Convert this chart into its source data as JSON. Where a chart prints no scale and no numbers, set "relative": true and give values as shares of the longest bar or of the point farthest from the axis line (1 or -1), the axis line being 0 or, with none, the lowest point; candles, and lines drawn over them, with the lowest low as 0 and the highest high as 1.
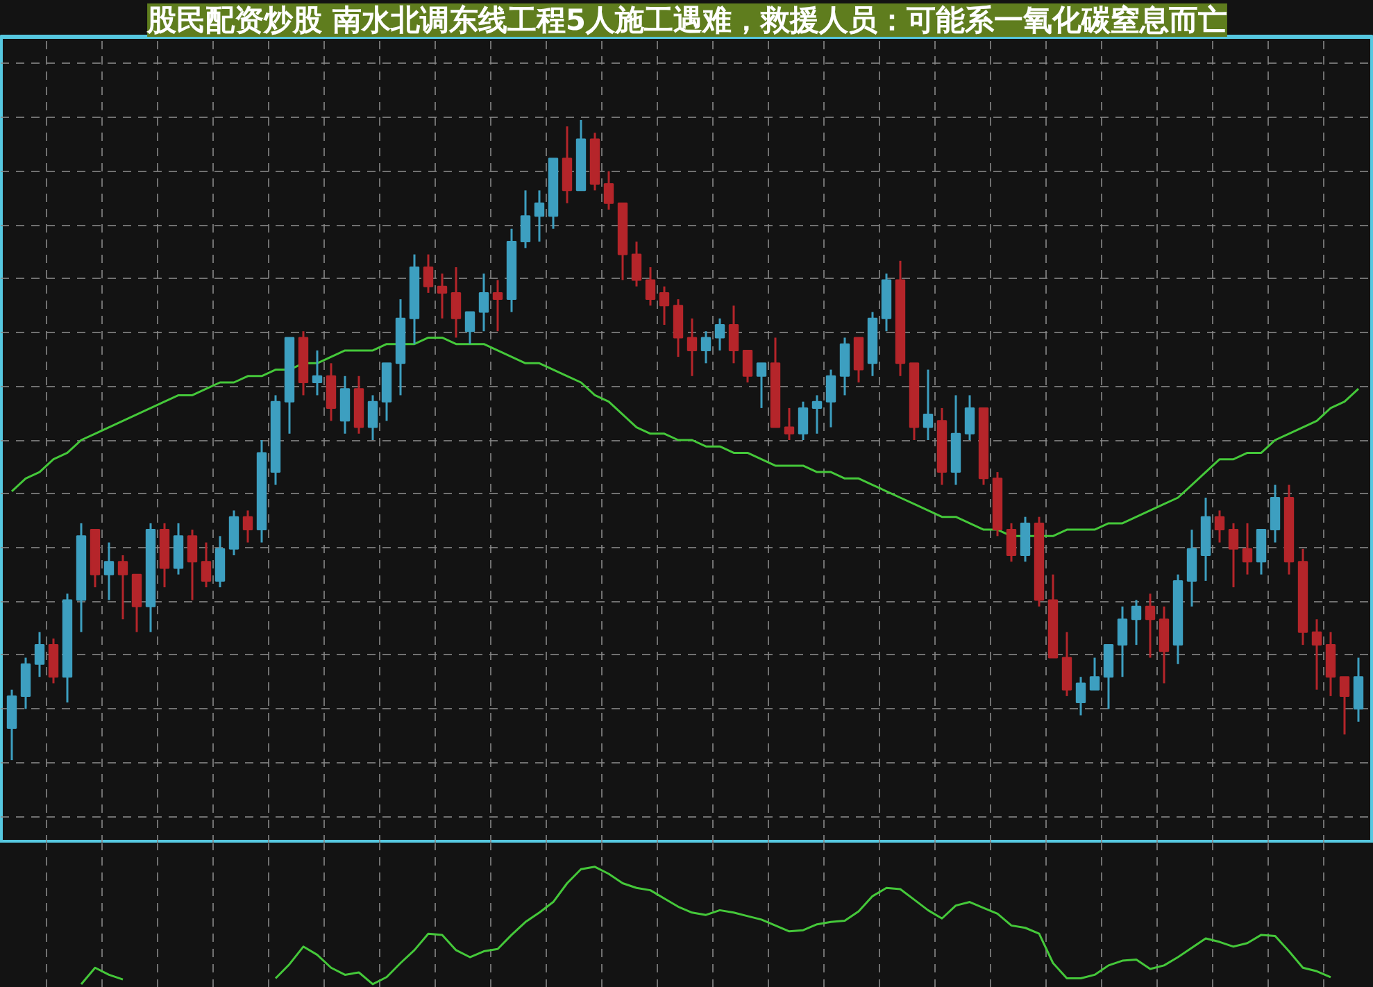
{
  "chart_data": [
    {
      "type": "candlestick",
      "title": "股民配资炒股 南水北调东线工程5人施工遇难，救援人员：可能系一氧化碳窒息而亡",
      "relative": true,
      "grid": true,
      "colors": [
        "#3d9fc0",
        "#3d9fc0",
        "#3d9fc0",
        "#b5252a",
        "#3d9fc0",
        "#3d9fc0",
        "#b5252a",
        "#3d9fc0",
        "#b5252a",
        "#b5252a",
        "#3d9fc0",
        "#b5252a",
        "#3d9fc0",
        "#b5252a",
        "#b5252a",
        "#3d9fc0",
        "#3d9fc0",
        "#b5252a",
        "#3d9fc0",
        "#3d9fc0",
        "#3d9fc0",
        "#b5252a",
        "#3d9fc0",
        "#b5252a",
        "#3d9fc0",
        "#b5252a",
        "#3d9fc0",
        "#3d9fc0",
        "#3d9fc0",
        "#3d9fc0",
        "#b5252a",
        "#b5252a",
        "#b5252a",
        "#3d9fc0",
        "#3d9fc0",
        "#b5252a",
        "#3d9fc0",
        "#3d9fc0",
        "#3d9fc0",
        "#3d9fc0",
        "#b5252a",
        "#3d9fc0",
        "#b5252a",
        "#b5252a",
        "#b5252a",
        "#b5252a",
        "#b5252a",
        "#b5252a",
        "#b5252a",
        "#b5252a",
        "#3d9fc0",
        "#3d9fc0",
        "#b5252a",
        "#b5252a",
        "#3d9fc0",
        "#b5252a",
        "#b5252a",
        "#3d9fc0",
        "#3d9fc0",
        "#3d9fc0",
        "#3d9fc0",
        "#b5252a",
        "#3d9fc0",
        "#3d9fc0",
        "#b5252a",
        "#b5252a",
        "#3d9fc0",
        "#b5252a",
        "#3d9fc0",
        "#3d9fc0",
        "#b5252a",
        "#b5252a",
        "#b5252a",
        "#3d9fc0",
        "#b5252a",
        "#b5252a",
        "#b5252a",
        "#3d9fc0",
        "#3d9fc0",
        "#3d9fc0",
        "#3d9fc0",
        "#3d9fc0",
        "#b5252a",
        "#b5252a",
        "#3d9fc0",
        "#3d9fc0",
        "#3d9fc0",
        "#b5252a",
        "#b5252a",
        "#b5252a",
        "#3d9fc0",
        "#3d9fc0",
        "#b5252a",
        "#b5252a",
        "#b5252a",
        "#b5252a",
        "#b5252a",
        "#3d9fc0"
      ],
      "categories": [
        null,
        null,
        null,
        null,
        null,
        null,
        null,
        null,
        null,
        null,
        null,
        null,
        null,
        null,
        null,
        null,
        null,
        null,
        null,
        null,
        null,
        null,
        null,
        null,
        null,
        null,
        null,
        null,
        null,
        null,
        null,
        null,
        null,
        null,
        null,
        null,
        null,
        null,
        null,
        null,
        null,
        null,
        null,
        null,
        null,
        null,
        null,
        null,
        null,
        null,
        null,
        null,
        null,
        null,
        null,
        null,
        null,
        null,
        null,
        null,
        null,
        null,
        null,
        null,
        null,
        null,
        null,
        null,
        null,
        null,
        null,
        null,
        null,
        null,
        null,
        null,
        null,
        null,
        null,
        null,
        null,
        null,
        null,
        null,
        null,
        null,
        null,
        null,
        null,
        null,
        null,
        null,
        null,
        null,
        null,
        null,
        null,
        null
      ],
      "ohlc": [
        [
          0.05,
          0.11,
          0,
          0.1
        ],
        [
          0.1,
          0.16,
          0.08,
          0.15
        ],
        [
          0.15,
          0.2,
          0.13,
          0.18
        ],
        [
          0.18,
          0.19,
          0.12,
          0.13
        ],
        [
          0.13,
          0.26,
          0.09,
          0.25
        ],
        [
          0.25,
          0.37,
          0.2,
          0.35
        ],
        [
          0.36,
          0.36,
          0.27,
          0.29
        ],
        [
          0.29,
          0.34,
          0.25,
          0.31
        ],
        [
          0.31,
          0.32,
          0.22,
          0.29
        ],
        [
          0.29,
          0.29,
          0.2,
          0.24
        ],
        [
          0.24,
          0.37,
          0.2,
          0.36
        ],
        [
          0.36,
          0.37,
          0.27,
          0.3
        ],
        [
          0.3,
          0.37,
          0.29,
          0.35
        ],
        [
          0.35,
          0.36,
          0.25,
          0.31
        ],
        [
          0.31,
          0.34,
          0.27,
          0.28
        ],
        [
          0.28,
          0.35,
          0.27,
          0.33
        ],
        [
          0.33,
          0.39,
          0.32,
          0.38
        ],
        [
          0.38,
          0.39,
          0.34,
          0.36
        ],
        [
          0.36,
          0.5,
          0.34,
          0.48
        ],
        [
          0.45,
          0.57,
          0.43,
          0.56
        ],
        [
          0.56,
          0.66,
          0.51,
          0.66
        ],
        [
          0.66,
          0.67,
          0.57,
          0.59
        ],
        [
          0.59,
          0.64,
          0.57,
          0.6
        ],
        [
          0.6,
          0.62,
          0.53,
          0.55
        ],
        [
          0.53,
          0.6,
          0.51,
          0.58
        ],
        [
          0.58,
          0.6,
          0.51,
          0.52
        ],
        [
          0.52,
          0.57,
          0.5,
          0.56
        ],
        [
          0.56,
          0.62,
          0.53,
          0.62
        ],
        [
          0.62,
          0.72,
          0.57,
          0.69
        ],
        [
          0.69,
          0.79,
          0.65,
          0.77
        ],
        [
          0.77,
          0.79,
          0.73,
          0.74
        ],
        [
          0.74,
          0.76,
          0.69,
          0.73
        ],
        [
          0.73,
          0.77,
          0.66,
          0.69
        ],
        [
          0.67,
          0.7,
          0.65,
          0.7
        ],
        [
          0.7,
          0.76,
          0.67,
          0.73
        ],
        [
          0.73,
          0.75,
          0.67,
          0.72
        ],
        [
          0.72,
          0.83,
          0.7,
          0.81
        ],
        [
          0.81,
          0.89,
          0.8,
          0.85
        ],
        [
          0.85,
          0.89,
          0.81,
          0.87
        ],
        [
          0.85,
          0.94,
          0.83,
          0.94
        ],
        [
          0.94,
          0.99,
          0.87,
          0.89
        ],
        [
          0.89,
          1,
          0.89,
          0.97
        ],
        [
          0.97,
          0.98,
          0.89,
          0.9
        ],
        [
          0.9,
          0.92,
          0.86,
          0.87
        ],
        [
          0.87,
          0.87,
          0.75,
          0.79
        ],
        [
          0.79,
          0.81,
          0.74,
          0.75
        ],
        [
          0.75,
          0.77,
          0.71,
          0.72
        ],
        [
          0.73,
          0.74,
          0.68,
          0.71
        ],
        [
          0.71,
          0.72,
          0.63,
          0.66
        ],
        [
          0.66,
          0.69,
          0.6,
          0.64
        ],
        [
          0.64,
          0.67,
          0.62,
          0.66
        ],
        [
          0.66,
          0.69,
          0.64,
          0.68
        ],
        [
          0.68,
          0.71,
          0.62,
          0.64
        ],
        [
          0.64,
          0.64,
          0.59,
          0.6
        ],
        [
          0.6,
          0.62,
          0.55,
          0.62
        ],
        [
          0.62,
          0.66,
          0.52,
          0.52
        ],
        [
          0.52,
          0.55,
          0.5,
          0.51
        ],
        [
          0.51,
          0.56,
          0.5,
          0.55
        ],
        [
          0.55,
          0.57,
          0.51,
          0.56
        ],
        [
          0.56,
          0.61,
          0.52,
          0.6
        ],
        [
          0.6,
          0.66,
          0.57,
          0.65
        ],
        [
          0.66,
          0.66,
          0.59,
          0.61
        ],
        [
          0.62,
          0.7,
          0.6,
          0.69
        ],
        [
          0.69,
          0.76,
          0.67,
          0.75
        ],
        [
          0.75,
          0.78,
          0.6,
          0.62
        ],
        [
          0.62,
          0.62,
          0.5,
          0.52
        ],
        [
          0.52,
          0.61,
          0.5,
          0.54
        ],
        [
          0.53,
          0.55,
          0.43,
          0.45
        ],
        [
          0.45,
          0.57,
          0.43,
          0.51
        ],
        [
          0.51,
          0.57,
          0.5,
          0.55
        ],
        [
          0.55,
          0.55,
          0.43,
          0.44
        ],
        [
          0.44,
          0.45,
          0.35,
          0.36
        ],
        [
          0.36,
          0.37,
          0.31,
          0.32
        ],
        [
          0.32,
          0.38,
          0.31,
          0.37
        ],
        [
          0.37,
          0.38,
          0.24,
          0.25
        ],
        [
          0.25,
          0.29,
          0.16,
          0.16
        ],
        [
          0.16,
          0.2,
          0.1,
          0.11
        ],
        [
          0.09,
          0.13,
          0.07,
          0.12
        ],
        [
          0.11,
          0.16,
          0.11,
          0.13
        ],
        [
          0.13,
          0.18,
          0.08,
          0.18
        ],
        [
          0.18,
          0.24,
          0.13,
          0.22
        ],
        [
          0.22,
          0.25,
          0.18,
          0.24
        ],
        [
          0.24,
          0.26,
          0.16,
          0.22
        ],
        [
          0.22,
          0.24,
          0.12,
          0.17
        ],
        [
          0.18,
          0.29,
          0.15,
          0.28
        ],
        [
          0.28,
          0.36,
          0.24,
          0.33
        ],
        [
          0.32,
          0.41,
          0.28,
          0.38
        ],
        [
          0.38,
          0.39,
          0.34,
          0.36
        ],
        [
          0.36,
          0.37,
          0.27,
          0.33
        ],
        [
          0.33,
          0.37,
          0.29,
          0.31
        ],
        [
          0.31,
          0.36,
          0.29,
          0.36
        ],
        [
          0.36,
          0.43,
          0.34,
          0.41
        ],
        [
          0.41,
          0.43,
          0.29,
          0.31
        ],
        [
          0.31,
          0.33,
          0.18,
          0.2
        ],
        [
          0.2,
          0.22,
          0.11,
          0.18
        ],
        [
          0.18,
          0.2,
          0.1,
          0.13
        ],
        [
          0.13,
          0.13,
          0.04,
          0.1
        ],
        [
          0.08,
          0.16,
          0.06,
          0.13
        ]
      ],
      "series": [
        {
          "type": "line",
          "color": "#45c83a",
          "values": [
            0.42,
            0.44,
            0.45,
            0.47,
            0.48,
            0.5,
            0.51,
            0.52,
            0.53,
            0.54,
            0.55,
            0.56,
            0.57,
            0.57,
            0.58,
            0.59,
            0.59,
            0.6,
            0.6,
            0.61,
            0.61,
            0.62,
            0.62,
            0.63,
            0.64,
            0.64,
            0.64,
            0.65,
            0.65,
            0.65,
            0.66,
            0.66,
            0.65,
            0.65,
            0.65,
            0.64,
            0.63,
            0.62,
            0.62,
            0.61,
            0.6,
            0.59,
            0.57,
            0.56,
            0.54,
            0.52,
            0.51,
            0.51,
            0.5,
            0.5,
            0.49,
            0.49,
            0.48,
            0.48,
            0.47,
            0.46,
            0.46,
            0.46,
            0.45,
            0.45,
            0.44,
            0.44,
            0.43,
            0.42,
            0.41,
            0.4,
            0.39,
            0.38,
            0.38,
            0.37,
            0.36,
            0.36,
            0.35,
            0.35,
            0.35,
            0.35,
            0.36,
            0.36,
            0.36,
            0.37,
            0.37,
            0.38,
            0.39,
            0.4,
            0.41,
            0.43,
            0.45,
            0.47,
            0.47,
            0.48,
            0.48,
            0.5,
            0.51,
            0.52,
            0.53,
            0.55,
            0.56,
            0.58
          ]
        }
      ]
    },
    {
      "type": "line",
      "relative": true,
      "grid": "x",
      "categories": [
        null,
        null,
        null,
        null,
        null,
        null,
        null,
        null,
        null,
        null,
        null,
        null,
        null,
        null,
        null,
        null,
        null,
        null,
        null,
        null,
        null,
        null,
        null,
        null,
        null,
        null,
        null,
        null,
        null,
        null,
        null,
        null,
        null,
        null,
        null,
        null,
        null,
        null,
        null,
        null,
        null,
        null,
        null,
        null,
        null,
        null,
        null,
        null,
        null,
        null,
        null,
        null,
        null,
        null,
        null,
        null,
        null,
        null,
        null,
        null,
        null,
        null,
        null,
        null,
        null,
        null,
        null,
        null,
        null,
        null,
        null,
        null,
        null,
        null,
        null,
        null,
        null,
        null,
        null,
        null,
        null,
        null,
        null,
        null,
        null,
        null,
        null,
        null,
        null,
        null,
        null,
        null,
        null,
        null,
        null,
        null,
        null,
        null
      ],
      "series": [
        {
          "color": "#45c83a",
          "values": [
            null,
            null,
            null,
            null,
            null,
            0,
            0.14,
            0.08,
            0.04,
            null,
            null,
            null,
            null,
            null,
            null,
            null,
            null,
            null,
            null,
            null,
            null,
            null,
            null,
            null,
            null,
            null,
            null,
            null,
            null,
            null,
            null,
            null,
            null,
            null,
            null,
            null,
            null,
            null,
            null,
            null,
            null,
            null,
            null,
            null,
            null,
            null,
            null,
            null,
            null,
            null,
            null,
            null,
            null,
            null,
            null,
            null,
            null,
            null,
            null,
            null,
            null,
            null,
            null,
            null,
            null,
            null,
            null,
            null,
            null,
            null,
            null,
            null,
            null,
            null,
            null,
            null,
            null,
            null,
            null,
            null,
            null,
            null,
            null,
            null,
            null,
            null,
            null,
            null,
            null,
            null,
            null,
            null,
            null,
            null,
            null,
            null,
            null,
            null
          ]
        },
        {
          "color": "#45c83a",
          "values": [
            null,
            null,
            null,
            null,
            null,
            null,
            null,
            null,
            null,
            null,
            null,
            null,
            null,
            null,
            null,
            null,
            null,
            null,
            null,
            0.05,
            0.17,
            0.32,
            0.25,
            0.14,
            0.08,
            0.1,
            0,
            0.06,
            0.18,
            0.29,
            0.43,
            0.42,
            0.29,
            0.23,
            0.28,
            0.3,
            0.42,
            0.53,
            0.61,
            0.7,
            0.86,
            0.98,
            1,
            0.94,
            0.86,
            0.82,
            0.8,
            0.73,
            0.66,
            0.61,
            0.59,
            0.63,
            0.61,
            0.58,
            0.55,
            0.5,
            0.45,
            0.46,
            0.51,
            0.53,
            0.54,
            0.62,
            0.75,
            0.82,
            0.81,
            0.72,
            0.63,
            0.56,
            0.67,
            0.7,
            0.65,
            0.6,
            0.5,
            0.48,
            0.43,
            0.18,
            0.05,
            0.05,
            0.08,
            0.16,
            0.2,
            0.21,
            0.13,
            0.16,
            0.23,
            0.31,
            0.39,
            0.36,
            0.32,
            0.35,
            0.42,
            0.41,
            0.28,
            0.14,
            0.11,
            0.06,
            null,
            null
          ]
        }
      ]
    }
  ]
}
